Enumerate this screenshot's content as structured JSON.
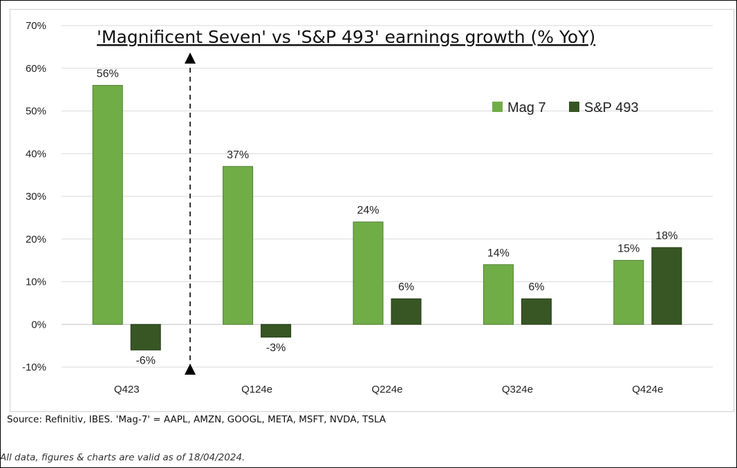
{
  "chart_data": {
    "type": "bar",
    "title": "'Magnificent Seven' vs 'S&P 493' earnings growth (% YoY)",
    "categories": [
      "Q423",
      "Q124e",
      "Q224e",
      "Q324e",
      "Q424e"
    ],
    "series": [
      {
        "name": "Mag 7",
        "values": [
          56,
          37,
          24,
          14,
          15
        ],
        "labels": [
          "56%",
          "37%",
          "24%",
          "14%",
          "15%"
        ],
        "color": "#70ad47"
      },
      {
        "name": "S&P 493",
        "values": [
          -6,
          -3,
          6,
          6,
          18
        ],
        "labels": [
          "-6%",
          "-3%",
          "6%",
          "6%",
          "18%"
        ],
        "color": "#375623"
      }
    ],
    "ylim": [
      -10,
      70
    ],
    "yticks": [
      -10,
      0,
      10,
      20,
      30,
      40,
      50,
      60,
      70
    ],
    "ytick_labels": [
      "-10%",
      "0%",
      "10%",
      "20%",
      "30%",
      "40%",
      "50%",
      "60%",
      "70%"
    ],
    "grid": true,
    "legend": "top-right",
    "annotation": "dashed double-headed arrow between Q423 and Q124e"
  },
  "source": "Source: Refinitiv, IBES. 'Mag-7' = AAPL, AMZN, GOOGL, META, MSFT, NVDA, TSLA",
  "disclaimer": "All data, figures & charts are valid as of 18/04/2024."
}
